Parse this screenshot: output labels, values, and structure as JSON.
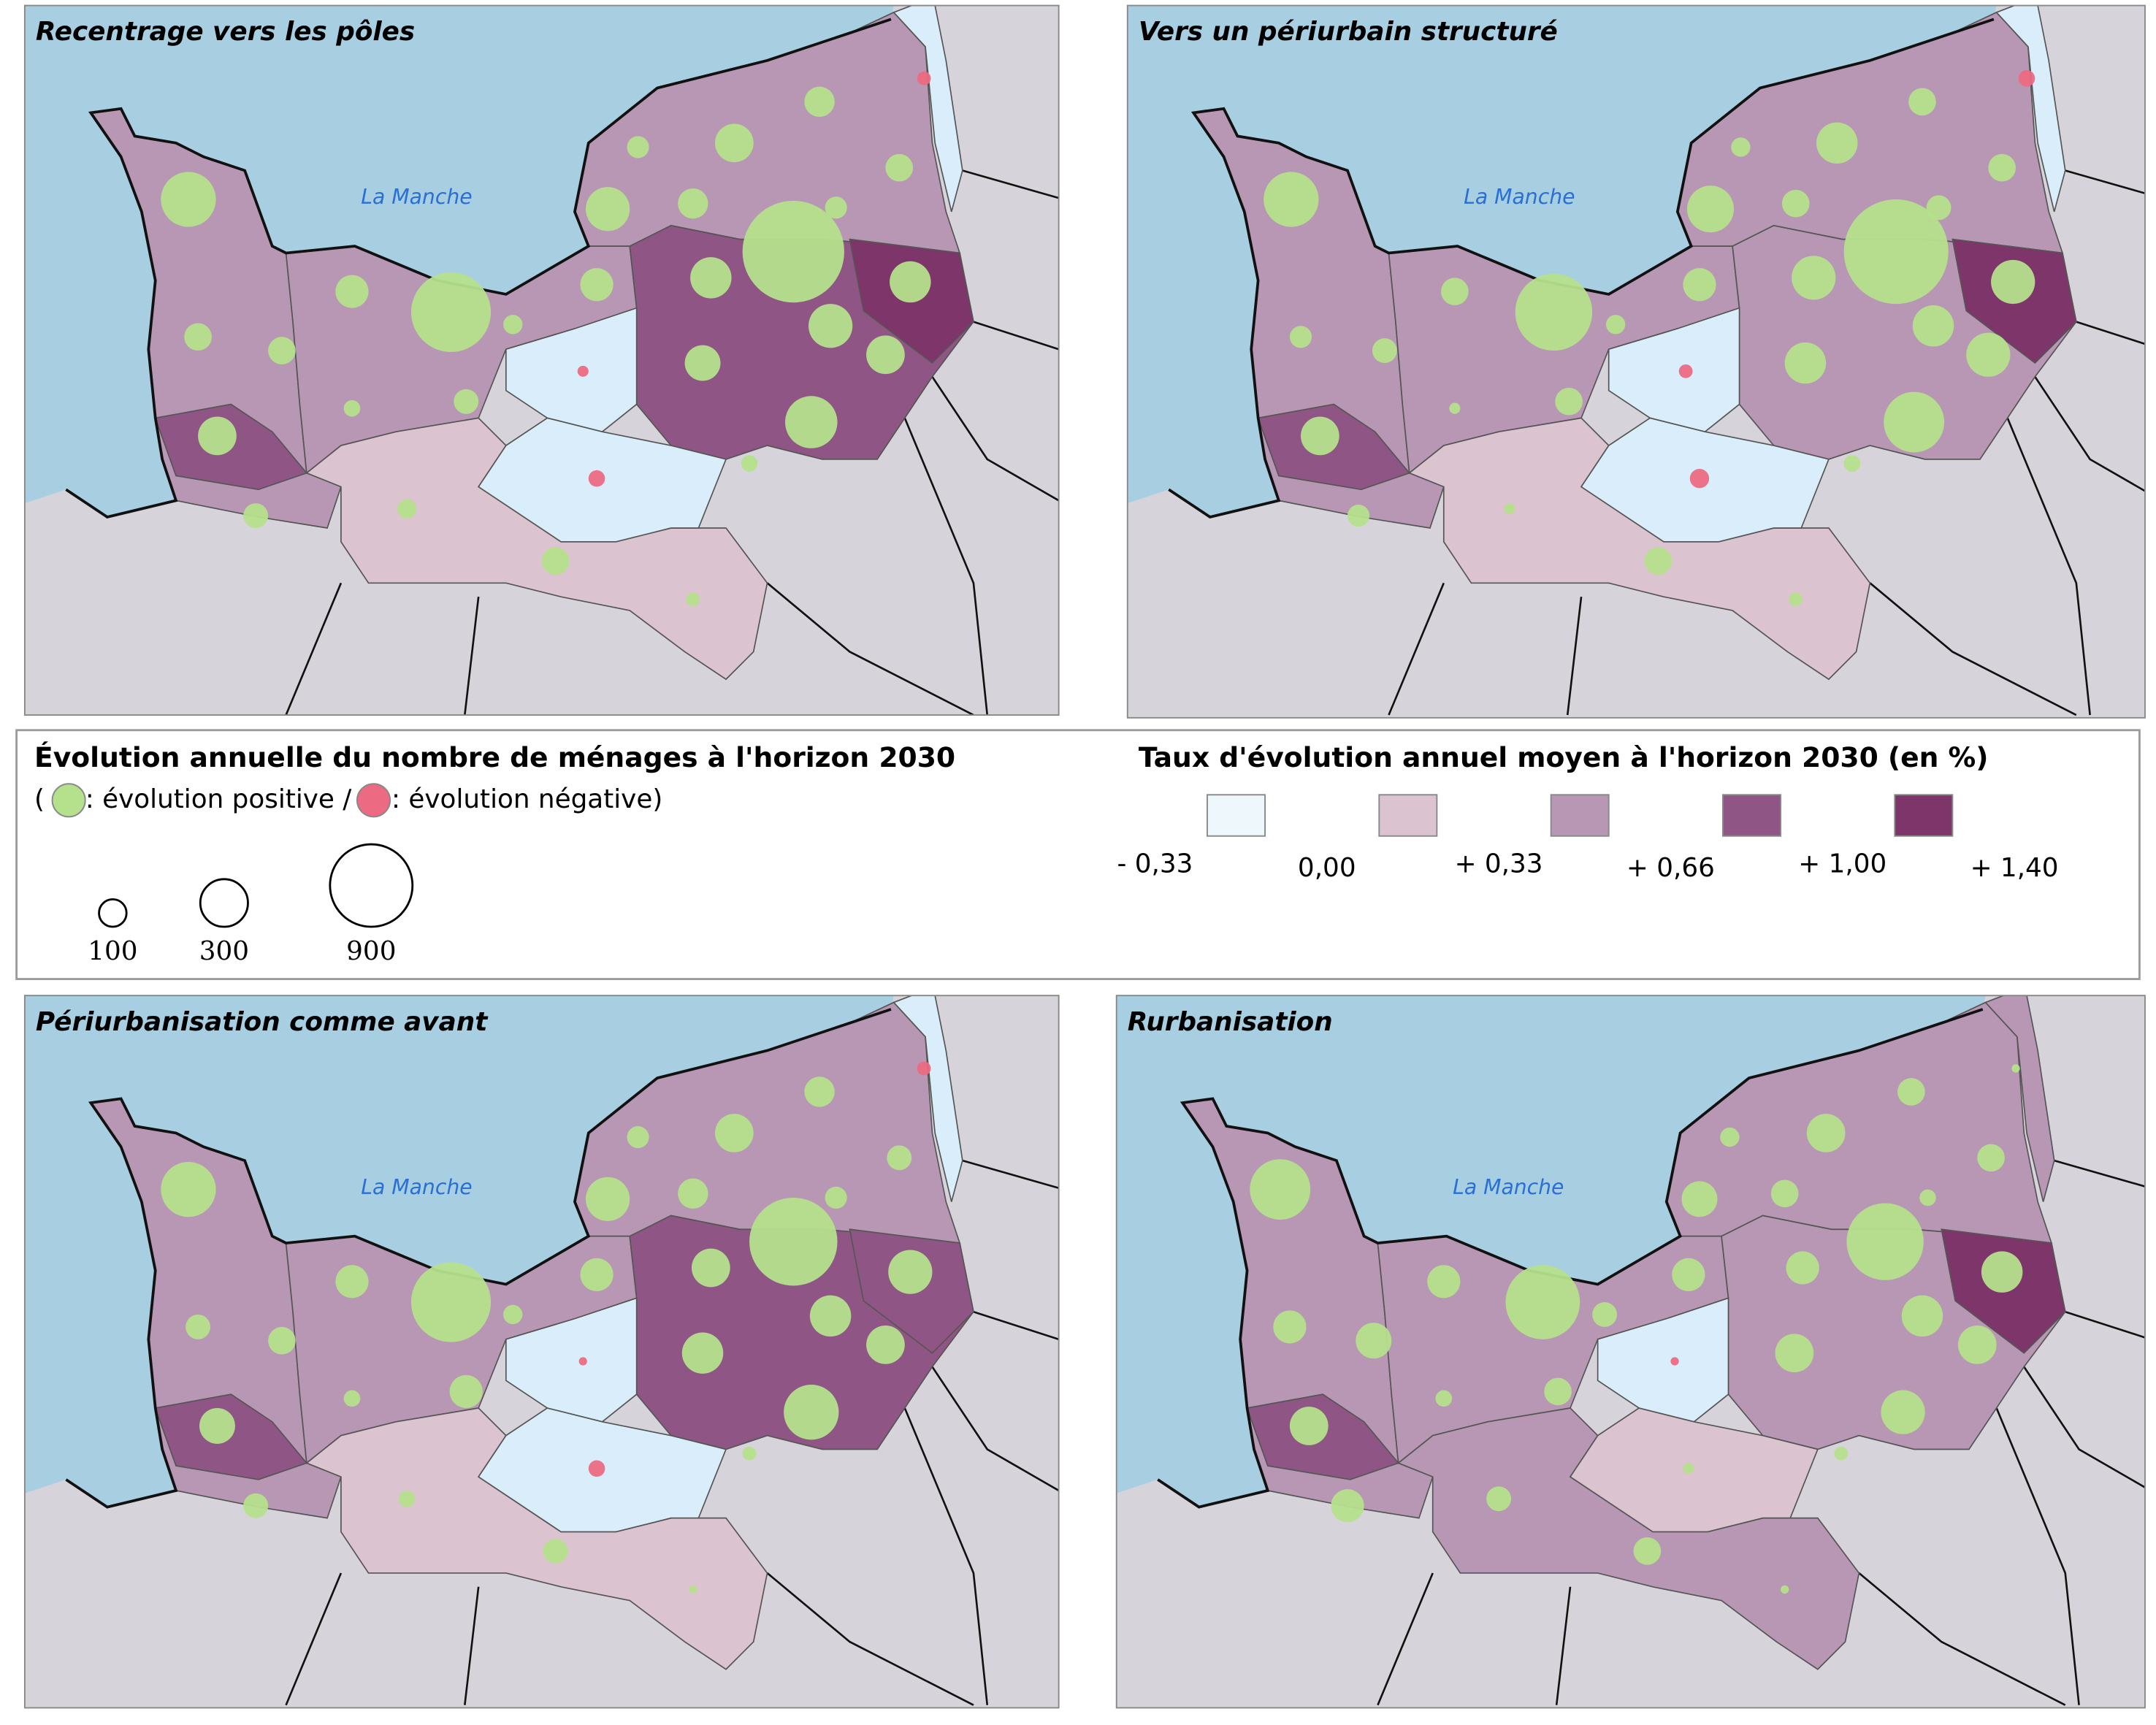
{
  "legend": {
    "size_title": "Évolution annuelle du nombre de ménages à l'horizon 2030",
    "positive_prefix": "(",
    "positive_text": ": évolution positive /",
    "negative_text": ": évolution négative)",
    "positive_color": "#b5e08c",
    "negative_color": "#ec6a82",
    "sizes": [
      100,
      300,
      900
    ],
    "rate_title": "Taux d'évolution annuel moyen à l'horizon 2030 (en %)",
    "classes": [
      "#eef7fc",
      "#dcc3d0",
      "#b897b5",
      "#8f5685",
      "#7e3569"
    ],
    "breaks": [
      {
        "value": -0.33,
        "label": "- 0,33"
      },
      {
        "value": 0,
        "label": "0,00"
      },
      {
        "value": 0.33,
        "label": "+ 0,33"
      },
      {
        "value": 0.66,
        "label": "+ 0,66"
      },
      {
        "value": 1,
        "label": "+ 1,00"
      },
      {
        "value": 1.4,
        "label": "+ 1,40"
      }
    ]
  },
  "maps": [
    {
      "title": "Recentrage vers les pôles",
      "sea_label": "La Manche",
      "zone_colors": [
        "#b897b5",
        "#b897b5",
        "#dcc3d0",
        "#8f5685",
        "#b897b5",
        "#d9eefa",
        "#d9eefa",
        "#d9eefa",
        "#7e3569",
        "#8f5685"
      ],
      "bubbles": [
        400,
        100,
        100,
        196,
        81,
        144,
        36,
        841,
        49,
        81,
        49,
        100,
        144,
        256,
        64,
        196,
        121,
        121,
        100,
        64,
        1369,
        225,
        225,
        256,
        196,
        169,
        361,
        36,
        25,
        -25,
        -16,
        -36
      ]
    },
    {
      "title": "Vers un périurbain structuré",
      "sea_label": "La Manche",
      "zone_colors": [
        "#b897b5",
        "#b897b5",
        "#dcc3d0",
        "#b897b5",
        "#b897b5",
        "#d9eefa",
        "#d9eefa",
        "#d9eefa",
        "#7e3569",
        "#8f5685"
      ],
      "bubbles": [
        400,
        64,
        81,
        196,
        64,
        100,
        16,
        784,
        49,
        100,
        16,
        100,
        144,
        289,
        49,
        225,
        100,
        100,
        100,
        81,
        1444,
        256,
        256,
        225,
        256,
        225,
        484,
        36,
        25,
        -36,
        -25,
        -49
      ]
    },
    {
      "title": "Périurbanisation comme avant",
      "sea_label": "La Manche",
      "zone_colors": [
        "#b897b5",
        "#b897b5",
        "#dcc3d0",
        "#8f5685",
        "#b897b5",
        "#d9eefa",
        "#d9eefa",
        "#d9eefa",
        "#8f5685",
        "#8f5685"
      ],
      "bubbles": [
        400,
        81,
        100,
        169,
        81,
        144,
        36,
        841,
        49,
        144,
        36,
        81,
        144,
        256,
        64,
        196,
        121,
        121,
        81,
        64,
        1024,
        196,
        256,
        225,
        196,
        225,
        400,
        25,
        9,
        -25,
        -9,
        -36
      ]
    },
    {
      "title": "Rurbanisation",
      "sea_label": "La Manche",
      "zone_colors": [
        "#b897b5",
        "#b897b5",
        "#b897b5",
        "#b897b5",
        "#b897b5",
        "#d9eefa",
        "#dcc3d0",
        "#b897b5",
        "#7e3569",
        "#8f5685"
      ],
      "bubbles": [
        484,
        144,
        169,
        196,
        144,
        144,
        36,
        729,
        81,
        100,
        81,
        100,
        144,
        169,
        49,
        196,
        100,
        100,
        100,
        36,
        784,
        144,
        225,
        225,
        196,
        196,
        256,
        25,
        9,
        9,
        -9,
        16
      ]
    }
  ]
}
